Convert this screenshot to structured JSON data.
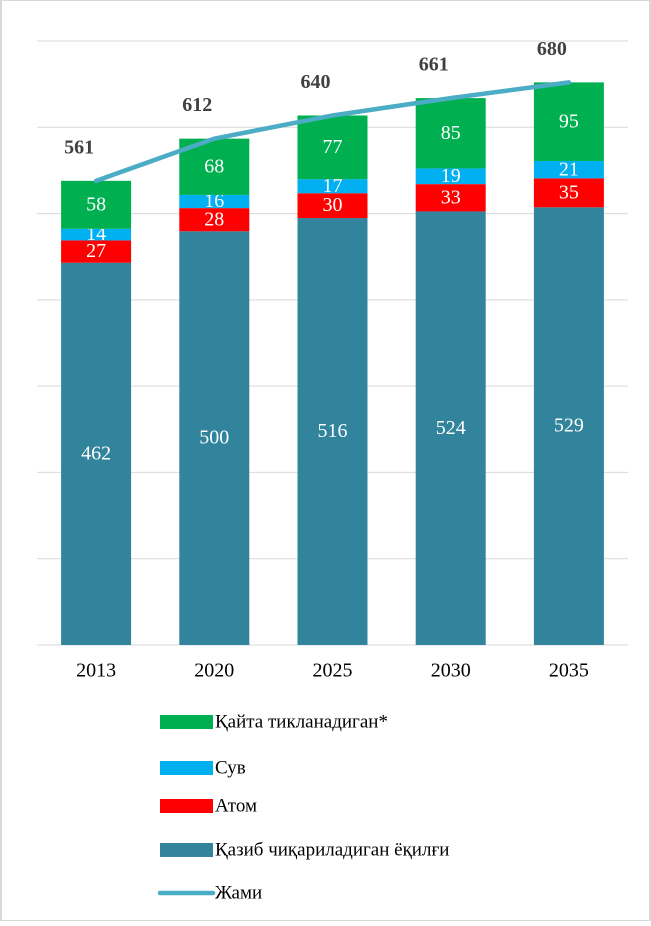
{
  "chart_data": {
    "type": "bar",
    "stacked": true,
    "categories": [
      "2013",
      "2020",
      "2025",
      "2030",
      "2035"
    ],
    "series": [
      {
        "name": "Қайта тикланадиган*",
        "color": "#00b050",
        "values": [
          58,
          68,
          77,
          85,
          95
        ]
      },
      {
        "name": "Сув",
        "color": "#00b0f0",
        "values": [
          14,
          16,
          17,
          19,
          21
        ]
      },
      {
        "name": "Атом",
        "color": "#ff0000",
        "values": [
          27,
          28,
          30,
          33,
          35
        ]
      },
      {
        "name": "Қазиб чиқариладиган ёқилғи",
        "color": "#31849b",
        "values": [
          462,
          500,
          516,
          524,
          529
        ]
      },
      {
        "name": "Жами",
        "color": "#4bacc6",
        "type": "line",
        "values": [
          561,
          612,
          640,
          661,
          680
        ]
      }
    ],
    "ylim": [
      0,
      730
    ],
    "grid": true,
    "legend": "bottom"
  }
}
